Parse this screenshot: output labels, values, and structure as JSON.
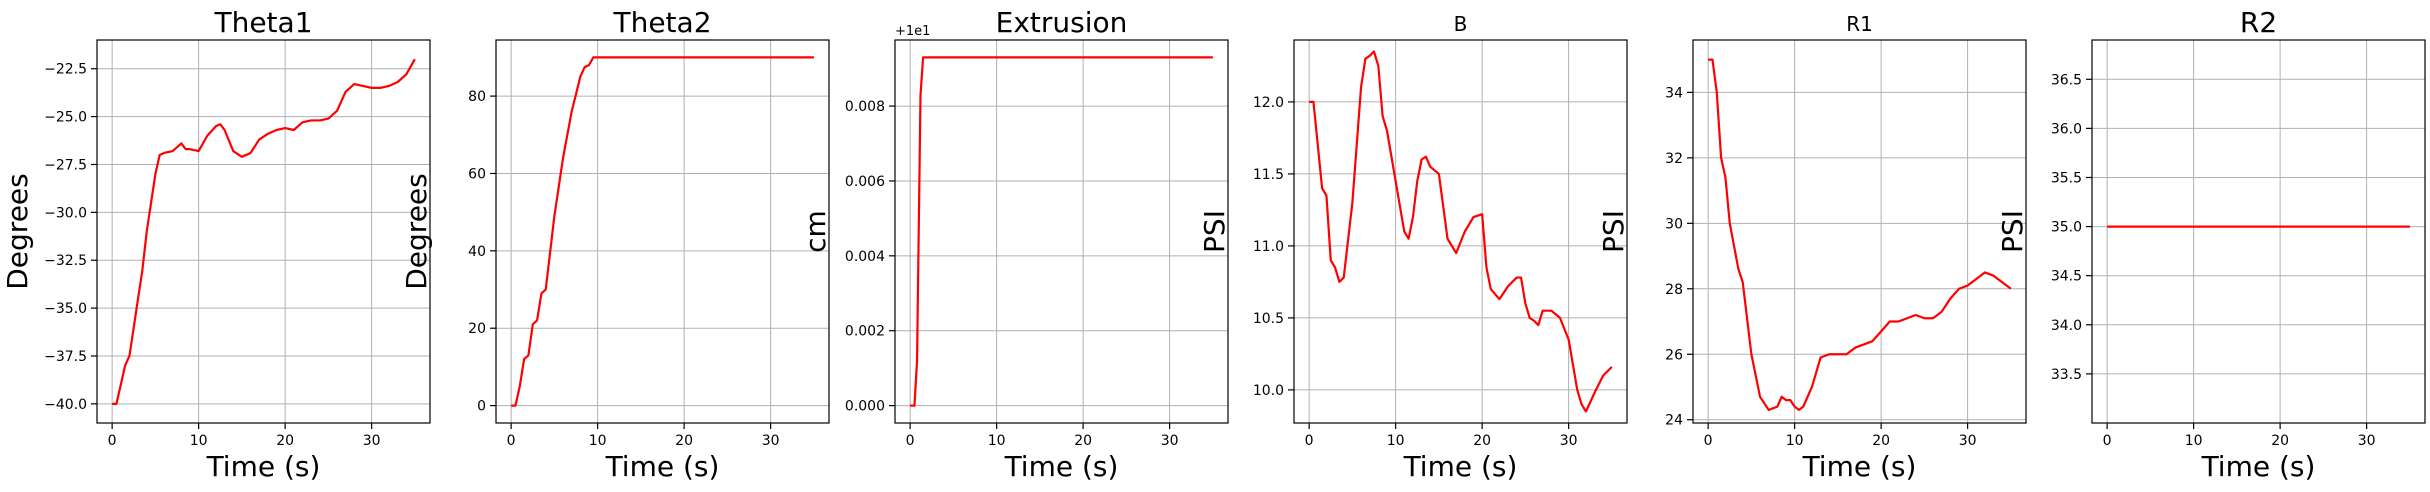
{
  "figure": {
    "background": "#ffffff",
    "line_color": "#ff0000",
    "grid_color": "#b0b0b0"
  },
  "chart_data": [
    {
      "type": "line",
      "title": "Theta1",
      "title_size": "big",
      "xlabel": "Time (s)",
      "ylabel": "Degrees",
      "xlim": [
        -1.75,
        36.75
      ],
      "ylim": [
        -41.0,
        -21.0
      ],
      "xticks": [
        0,
        10,
        20,
        30
      ],
      "xtick_labels": [
        "0",
        "10",
        "20",
        "30"
      ],
      "yticks": [
        -40.0,
        -37.5,
        -35.0,
        -32.5,
        -30.0,
        -27.5,
        -25.0,
        -22.5
      ],
      "ytick_labels": [
        "−40.0",
        "−37.5",
        "−35.0",
        "−32.5",
        "−30.0",
        "−27.5",
        "−25.0",
        "−22.5"
      ],
      "offset_text": "",
      "grid": true,
      "series": [
        {
          "color": "#ff0000",
          "x": [
            0,
            0.5,
            1,
            1.5,
            2,
            2.5,
            3,
            3.5,
            4,
            4.5,
            5,
            5.5,
            6,
            7,
            8,
            8.5,
            9,
            10,
            11,
            12,
            12.5,
            13,
            14,
            15,
            16,
            17,
            18,
            19,
            20,
            21,
            22,
            23,
            24,
            25,
            26,
            27,
            28,
            29,
            30,
            31,
            32,
            33,
            34,
            35
          ],
          "y": [
            -40,
            -40,
            -39,
            -38,
            -37.5,
            -36,
            -34.5,
            -33,
            -31,
            -29.5,
            -28,
            -27,
            -26.9,
            -26.8,
            -26.4,
            -26.7,
            -26.7,
            -26.8,
            -26,
            -25.5,
            -25.4,
            -25.7,
            -26.8,
            -27.1,
            -26.9,
            -26.2,
            -25.9,
            -25.7,
            -25.6,
            -25.7,
            -25.3,
            -25.2,
            -25.2,
            -25.1,
            -24.7,
            -23.7,
            -23.3,
            -23.4,
            -23.5,
            -23.5,
            -23.4,
            -23.2,
            -22.8,
            -22.0
          ]
        }
      ]
    },
    {
      "type": "line",
      "title": "Theta2",
      "title_size": "big",
      "xlabel": "Time (s)",
      "ylabel": "Degrees",
      "xlim": [
        -1.75,
        36.75
      ],
      "ylim": [
        -4.5,
        94.5
      ],
      "xticks": [
        0,
        10,
        20,
        30
      ],
      "xtick_labels": [
        "0",
        "10",
        "20",
        "30"
      ],
      "yticks": [
        0,
        20,
        40,
        60,
        80
      ],
      "ytick_labels": [
        "0",
        "20",
        "40",
        "60",
        "80"
      ],
      "offset_text": "",
      "grid": true,
      "series": [
        {
          "color": "#ff0000",
          "x": [
            0,
            0.5,
            1,
            1.5,
            2,
            2.5,
            3,
            3.5,
            4,
            5,
            6,
            7,
            8,
            8.5,
            9,
            9.5,
            10,
            35
          ],
          "y": [
            0,
            0,
            5,
            12,
            13,
            21,
            22,
            29,
            30,
            49,
            64,
            76,
            85,
            87.5,
            88,
            90,
            90,
            90
          ]
        }
      ]
    },
    {
      "type": "line",
      "title": "Extrusion",
      "title_size": "big",
      "xlabel": "Time (s)",
      "ylabel": "cm",
      "xlim": [
        -1.75,
        36.75
      ],
      "ylim": [
        -0.000465,
        0.009765
      ],
      "xticks": [
        0,
        10,
        20,
        30
      ],
      "xtick_labels": [
        "0",
        "10",
        "20",
        "30"
      ],
      "yticks": [
        0,
        0.002,
        0.004,
        0.006,
        0.008
      ],
      "ytick_labels": [
        "0.000",
        "0.002",
        "0.004",
        "0.006",
        "0.008"
      ],
      "offset_text": "+1e1",
      "grid": true,
      "series": [
        {
          "color": "#ff0000",
          "x": [
            0,
            0.5,
            0.8,
            1.0,
            1.2,
            1.5,
            35
          ],
          "y": [
            0,
            0,
            0.0012,
            0.0048,
            0.0083,
            0.0093,
            0.0093
          ]
        }
      ]
    },
    {
      "type": "line",
      "title": "B",
      "title_size": "small",
      "xlabel": "Time (s)",
      "ylabel": "PSI",
      "xlim": [
        -1.75,
        36.75
      ],
      "ylim": [
        9.77,
        12.43
      ],
      "xticks": [
        0,
        10,
        20,
        30
      ],
      "xtick_labels": [
        "0",
        "10",
        "20",
        "30"
      ],
      "yticks": [
        10.0,
        10.5,
        11.0,
        11.5,
        12.0
      ],
      "ytick_labels": [
        "10.0",
        "10.5",
        "11.0",
        "11.5",
        "12.0"
      ],
      "offset_text": "",
      "grid": true,
      "series": [
        {
          "color": "#ff0000",
          "x": [
            0,
            0.5,
            1,
            1.5,
            2,
            2.5,
            3,
            3.5,
            4,
            5,
            6,
            6.5,
            7,
            7.5,
            8,
            8.5,
            9,
            10,
            11,
            11.5,
            12,
            12.5,
            13,
            13.5,
            14,
            15,
            16,
            17,
            18,
            19,
            20,
            20.5,
            21,
            22,
            23,
            24,
            24.5,
            25,
            25.5,
            26,
            26.5,
            27,
            28,
            29,
            30,
            31,
            31.5,
            32,
            33,
            34,
            35
          ],
          "y": [
            12.0,
            12.0,
            11.7,
            11.4,
            11.35,
            10.9,
            10.85,
            10.75,
            10.78,
            11.3,
            12.1,
            12.3,
            12.32,
            12.35,
            12.25,
            11.9,
            11.8,
            11.45,
            11.1,
            11.05,
            11.2,
            11.45,
            11.6,
            11.62,
            11.55,
            11.5,
            11.05,
            10.95,
            11.1,
            11.2,
            11.22,
            10.85,
            10.7,
            10.63,
            10.72,
            10.78,
            10.78,
            10.6,
            10.5,
            10.48,
            10.45,
            10.55,
            10.55,
            10.5,
            10.35,
            10.0,
            9.9,
            9.85,
            9.98,
            10.1,
            10.16
          ]
        }
      ]
    },
    {
      "type": "line",
      "title": "R1",
      "title_size": "small",
      "xlabel": "Time (s)",
      "ylabel": "PSI",
      "xlim": [
        -1.75,
        36.75
      ],
      "ylim": [
        23.9,
        35.6
      ],
      "xticks": [
        0,
        10,
        20,
        30
      ],
      "xtick_labels": [
        "0",
        "10",
        "20",
        "30"
      ],
      "yticks": [
        24,
        26,
        28,
        30,
        32,
        34
      ],
      "ytick_labels": [
        "24",
        "26",
        "28",
        "30",
        "32",
        "34"
      ],
      "offset_text": "",
      "grid": true,
      "series": [
        {
          "color": "#ff0000",
          "x": [
            0,
            0.5,
            1,
            1.5,
            2,
            2.5,
            3,
            3.5,
            4,
            5,
            6,
            6.5,
            7,
            8,
            8.5,
            9,
            9.5,
            10,
            10.5,
            11,
            12,
            13,
            14,
            15,
            16,
            17,
            18,
            19,
            20,
            21,
            22,
            23,
            24,
            25,
            26,
            27,
            28,
            29,
            30,
            31,
            32,
            33,
            34,
            35
          ],
          "y": [
            35,
            35,
            34,
            32,
            31.4,
            30,
            29.3,
            28.6,
            28.2,
            26,
            24.7,
            24.5,
            24.3,
            24.4,
            24.7,
            24.6,
            24.6,
            24.4,
            24.3,
            24.4,
            25.0,
            25.9,
            26.0,
            26.0,
            26.0,
            26.2,
            26.3,
            26.4,
            26.7,
            27.0,
            27.0,
            27.1,
            27.2,
            27.1,
            27.1,
            27.3,
            27.7,
            28.0,
            28.1,
            28.3,
            28.5,
            28.4,
            28.2,
            28.0
          ]
        }
      ]
    },
    {
      "type": "line",
      "title": "R2",
      "title_size": "big",
      "xlabel": "Time (s)",
      "ylabel": "PSI",
      "xlim": [
        -1.75,
        36.75
      ],
      "ylim": [
        33.0,
        36.9
      ],
      "xticks": [
        0,
        10,
        20,
        30
      ],
      "xtick_labels": [
        "0",
        "10",
        "20",
        "30"
      ],
      "yticks": [
        33.5,
        34.0,
        34.5,
        35.0,
        35.5,
        36.0,
        36.5
      ],
      "ytick_labels": [
        "33.5",
        "34.0",
        "34.5",
        "35.0",
        "35.5",
        "36.0",
        "36.5"
      ],
      "offset_text": "",
      "grid": true,
      "series": [
        {
          "color": "#ff0000",
          "x": [
            0,
            35
          ],
          "y": [
            35.0,
            35.0
          ]
        }
      ]
    }
  ]
}
